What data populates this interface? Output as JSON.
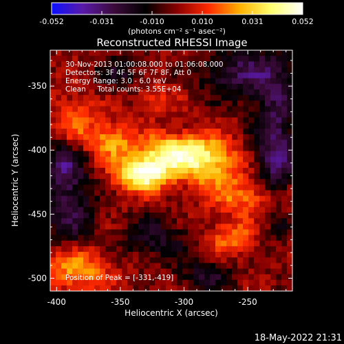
{
  "colorbar": {
    "tick_labels": [
      "-0.052",
      "-0.031",
      "-0.010",
      "0.010",
      "0.031",
      "0.052"
    ],
    "units": "(photons cm⁻² s⁻¹ asec⁻²)",
    "vmin": -0.052,
    "vmax": 0.052,
    "colors": [
      "#0a10ff",
      "#5a1aa8",
      "#3c0a3a",
      "#000000",
      "#8a0000",
      "#ff2a00",
      "#ffb000",
      "#ffff70",
      "#ffffff"
    ]
  },
  "title": "Reconstructed RHESSI Image",
  "info_lines": [
    "30-Nov-2013 01:00:08.000 to 01:06:08.000",
    "Detectors: 3F 4F 5F 6F 7F 8F, Att 0",
    "Energy Range: 3.0 - 6.0 keV",
    "Clean     Total counts: 3.55E+04"
  ],
  "peak_text": "Position of Peak = [-331,-419]",
  "axes": {
    "x_label": "Heliocentric X (arcsec)",
    "y_label": "Heliocentric Y (arcsec)",
    "x_range": [
      -405,
      -215
    ],
    "y_range": [
      -510,
      -322
    ],
    "x_ticks": [
      -400,
      -350,
      -300,
      -250
    ],
    "y_ticks": [
      -350,
      -400,
      -450,
      -500
    ],
    "x_tick_labels": [
      "-400",
      "-350",
      "-300",
      "-250"
    ],
    "y_tick_labels": [
      "-350",
      "-400",
      "-450",
      "-500"
    ]
  },
  "image": {
    "peak_position": [
      -331,
      -419
    ],
    "bright_sources": [
      {
        "x": -331,
        "y": -419,
        "amp": 1.0,
        "sx": 14,
        "sy": 9
      },
      {
        "x": -305,
        "y": -403,
        "amp": 0.85,
        "sx": 18,
        "sy": 10
      },
      {
        "x": -275,
        "y": -412,
        "amp": 0.55,
        "sx": 16,
        "sy": 14
      },
      {
        "x": -355,
        "y": -394,
        "amp": 0.5,
        "sx": 12,
        "sy": 10
      },
      {
        "x": -240,
        "y": -438,
        "amp": 0.45,
        "sx": 22,
        "sy": 10
      },
      {
        "x": -385,
        "y": -495,
        "amp": 0.5,
        "sx": 18,
        "sy": 12
      },
      {
        "x": -260,
        "y": -470,
        "amp": 0.4,
        "sx": 14,
        "sy": 9
      },
      {
        "x": -385,
        "y": -378,
        "amp": 0.35,
        "sx": 12,
        "sy": 14
      },
      {
        "x": -320,
        "y": -360,
        "amp": 0.25,
        "sx": 10,
        "sy": 8
      }
    ],
    "negative_sources": [
      {
        "x": -225,
        "y": -400,
        "amp": 0.6,
        "sx": 12,
        "sy": 40
      },
      {
        "x": -250,
        "y": -340,
        "amp": 0.5,
        "sx": 25,
        "sy": 14
      },
      {
        "x": -390,
        "y": -445,
        "amp": 0.5,
        "sx": 14,
        "sy": 22
      },
      {
        "x": -395,
        "y": -410,
        "amp": 0.45,
        "sx": 10,
        "sy": 12
      },
      {
        "x": -320,
        "y": -470,
        "amp": 0.35,
        "sx": 20,
        "sy": 12
      },
      {
        "x": -280,
        "y": -500,
        "amp": 0.35,
        "sx": 16,
        "sy": 10
      },
      {
        "x": -350,
        "y": -340,
        "amp": 0.3,
        "sx": 14,
        "sy": 10
      }
    ]
  },
  "footer_timestamp": "18-May-2022 21:31"
}
